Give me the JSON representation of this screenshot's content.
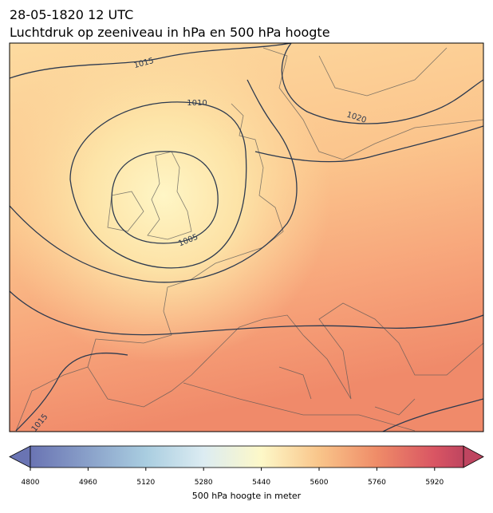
{
  "header": {
    "title": "28-05-1820 12 UTC",
    "subtitle": "Luchtdruk op zeeniveau in hPa en 500 hPa hoogte"
  },
  "contour_labels": [
    "1015",
    "1010",
    "1020",
    "1005",
    "1015"
  ],
  "colorbar": {
    "label": "500 hPa hoogte in meter",
    "lim": [
      4800,
      6000
    ],
    "ticks": [
      4800,
      4960,
      5120,
      5280,
      5440,
      5600,
      5760,
      5920
    ],
    "stops": [
      {
        "value": 4800,
        "color": "#6a74b3"
      },
      {
        "value": 5120,
        "color": "#a9cde0"
      },
      {
        "value": 5280,
        "color": "#dcecf2"
      },
      {
        "value": 5440,
        "color": "#fdf8c8"
      },
      {
        "value": 5600,
        "color": "#f9c58a"
      },
      {
        "value": 5760,
        "color": "#ef8c68"
      },
      {
        "value": 5920,
        "color": "#d95563"
      },
      {
        "value": 6000,
        "color": "#bf4560"
      }
    ]
  }
}
